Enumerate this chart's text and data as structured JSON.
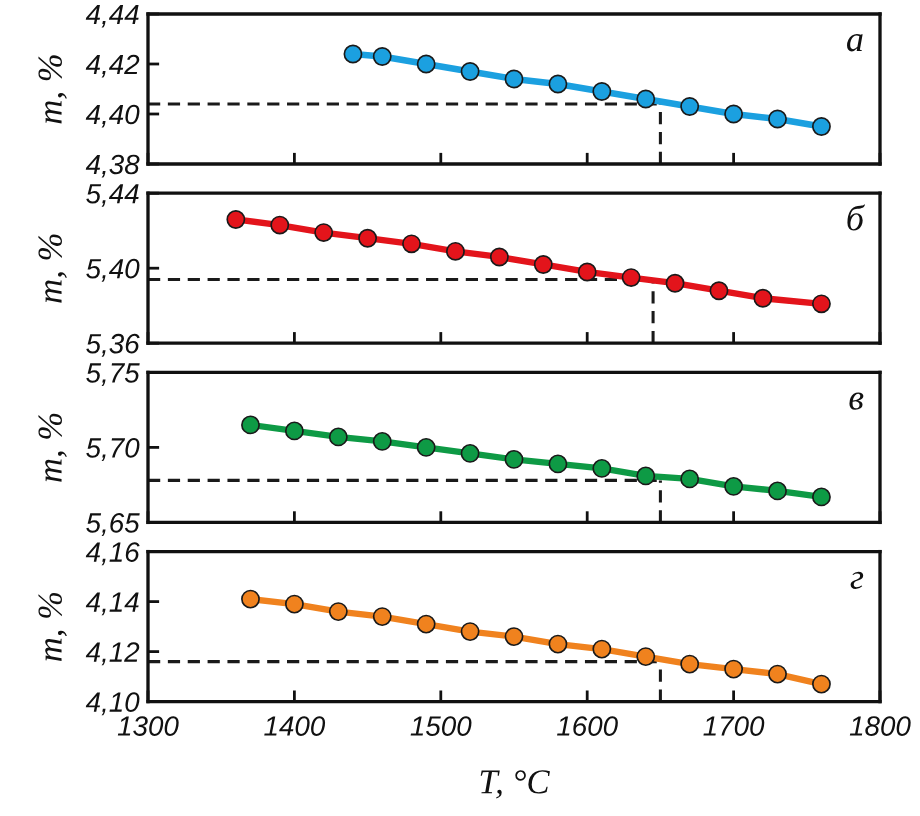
{
  "chart_data": [
    {
      "type": "line",
      "title": "а",
      "ylabel": "m, %",
      "x": [
        1440,
        1460,
        1490,
        1520,
        1550,
        1580,
        1610,
        1640,
        1670,
        1700,
        1730,
        1760
      ],
      "series": [
        {
          "color": "#1ba0e0",
          "values": [
            4.424,
            4.423,
            4.42,
            4.417,
            4.414,
            4.412,
            4.409,
            4.406,
            4.403,
            4.4,
            4.398,
            4.395
          ]
        }
      ],
      "xlim": [
        1300,
        1800
      ],
      "xticks": [
        1300,
        1400,
        1500,
        1600,
        1700,
        1800
      ],
      "ylim": [
        4.38,
        4.44
      ],
      "yticks": [
        {
          "value": 4.38,
          "label": "4,38"
        },
        {
          "value": 4.4,
          "label": "4,40"
        },
        {
          "value": 4.42,
          "label": "4,42"
        },
        {
          "value": 4.44,
          "label": "4,44"
        }
      ],
      "ref_lines": [
        {
          "axis": "y",
          "value": 4.404,
          "color": "#1a1a1a",
          "line_style": "dashed"
        },
        {
          "axis": "x",
          "value": 1650,
          "color": "#1a1a1a",
          "line_style": "dashed"
        }
      ],
      "marker": "circle",
      "line_style": "solid",
      "tick_labels": "y"
    },
    {
      "type": "line",
      "title": "б",
      "ylabel": "m, %",
      "x": [
        1360,
        1390,
        1420,
        1450,
        1480,
        1510,
        1540,
        1570,
        1600,
        1630,
        1660,
        1690,
        1720,
        1760
      ],
      "series": [
        {
          "color": "#e3141b",
          "values": [
            5.426,
            5.423,
            5.419,
            5.416,
            5.413,
            5.409,
            5.406,
            5.402,
            5.398,
            5.395,
            5.392,
            5.388,
            5.384,
            5.381
          ]
        }
      ],
      "xlim": [
        1300,
        1800
      ],
      "xticks": [
        1300,
        1400,
        1500,
        1600,
        1700,
        1800
      ],
      "ylim": [
        5.36,
        5.44
      ],
      "yticks": [
        {
          "value": 5.36,
          "label": "5,36"
        },
        {
          "value": 5.4,
          "label": "5,40"
        },
        {
          "value": 5.44,
          "label": "5,44"
        }
      ],
      "ref_lines": [
        {
          "axis": "y",
          "value": 5.394,
          "color": "#1a1a1a",
          "line_style": "dashed"
        },
        {
          "axis": "x",
          "value": 1645,
          "color": "#1a1a1a",
          "line_style": "dashed"
        }
      ],
      "marker": "circle",
      "line_style": "solid",
      "tick_labels": "y"
    },
    {
      "type": "line",
      "title": "в",
      "ylabel": "m, %",
      "x": [
        1370,
        1400,
        1430,
        1460,
        1490,
        1520,
        1550,
        1580,
        1610,
        1640,
        1670,
        1700,
        1730,
        1760
      ],
      "series": [
        {
          "color": "#0e9a45",
          "values": [
            5.715,
            5.711,
            5.707,
            5.704,
            5.7,
            5.696,
            5.692,
            5.689,
            5.686,
            5.681,
            5.679,
            5.674,
            5.671,
            5.667
          ]
        }
      ],
      "xlim": [
        1300,
        1800
      ],
      "xticks": [
        1300,
        1400,
        1500,
        1600,
        1700,
        1800
      ],
      "ylim": [
        5.65,
        5.75
      ],
      "yticks": [
        {
          "value": 5.65,
          "label": "5,65"
        },
        {
          "value": 5.7,
          "label": "5,70"
        },
        {
          "value": 5.75,
          "label": "5,75"
        }
      ],
      "ref_lines": [
        {
          "axis": "y",
          "value": 5.678,
          "color": "#1a1a1a",
          "line_style": "dashed"
        },
        {
          "axis": "x",
          "value": 1650,
          "color": "#1a1a1a",
          "line_style": "dashed"
        }
      ],
      "marker": "circle",
      "line_style": "solid",
      "tick_labels": "y"
    },
    {
      "type": "line",
      "title": "г",
      "ylabel": "m, %",
      "xlabel": "T, °C",
      "x": [
        1370,
        1400,
        1430,
        1460,
        1490,
        1520,
        1550,
        1580,
        1610,
        1640,
        1670,
        1700,
        1730,
        1760
      ],
      "series": [
        {
          "color": "#f0821e",
          "values": [
            4.141,
            4.139,
            4.136,
            4.134,
            4.131,
            4.128,
            4.126,
            4.123,
            4.121,
            4.118,
            4.115,
            4.113,
            4.111,
            4.107
          ]
        }
      ],
      "xlim": [
        1300,
        1800
      ],
      "xticks": [
        1300,
        1400,
        1500,
        1600,
        1700,
        1800
      ],
      "ylim": [
        4.1,
        4.16
      ],
      "yticks": [
        {
          "value": 4.1,
          "label": "4,10"
        },
        {
          "value": 4.12,
          "label": "4,12"
        },
        {
          "value": 4.14,
          "label": "4,14"
        },
        {
          "value": 4.16,
          "label": "4,16"
        }
      ],
      "ref_lines": [
        {
          "axis": "y",
          "value": 4.116,
          "color": "#1a1a1a",
          "line_style": "dashed"
        },
        {
          "axis": "x",
          "value": 1650,
          "color": "#1a1a1a",
          "line_style": "dashed"
        }
      ],
      "marker": "circle",
      "line_style": "solid"
    }
  ]
}
